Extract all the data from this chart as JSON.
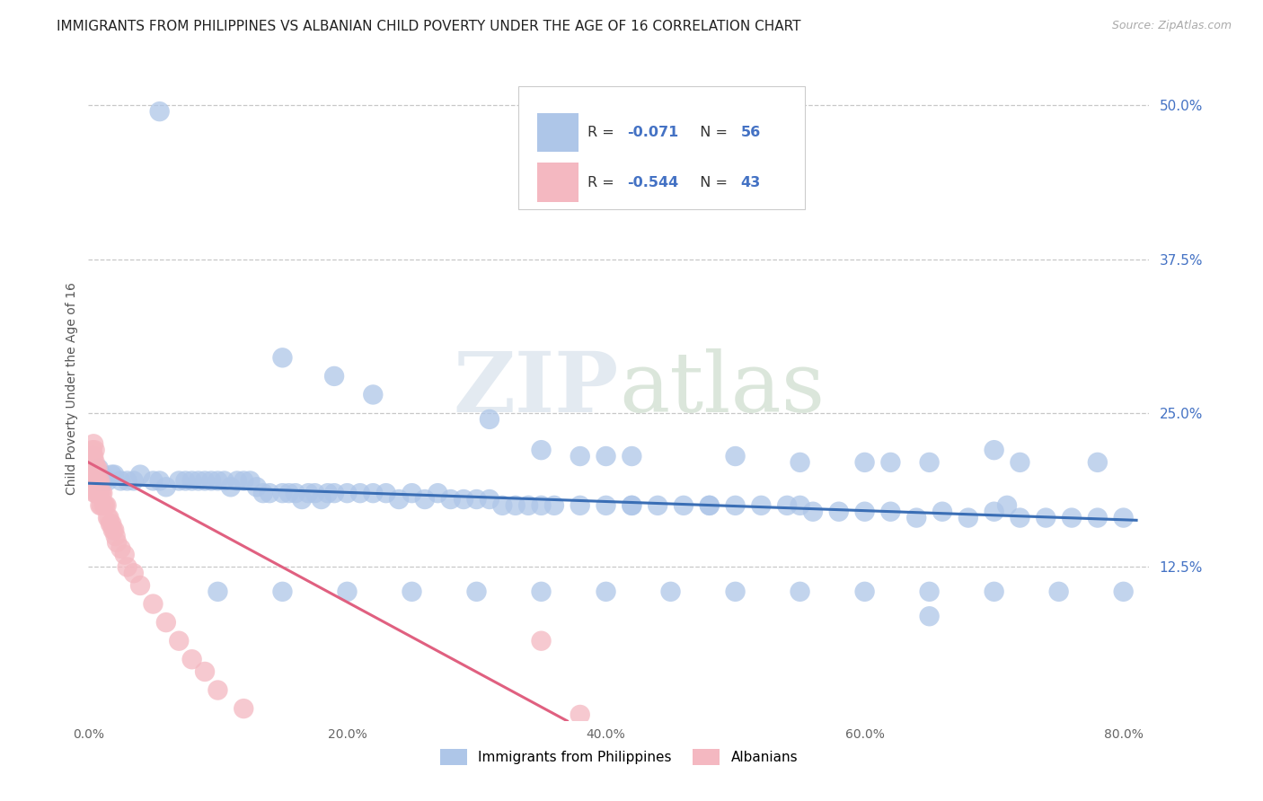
{
  "title": "IMMIGRANTS FROM PHILIPPINES VS ALBANIAN CHILD POVERTY UNDER THE AGE OF 16 CORRELATION CHART",
  "source": "Source: ZipAtlas.com",
  "ylabel": "Child Poverty Under the Age of 16",
  "xlabel_ticks": [
    "0.0%",
    "20.0%",
    "40.0%",
    "60.0%",
    "80.0%"
  ],
  "xlabel_vals": [
    0.0,
    0.2,
    0.4,
    0.6,
    0.8
  ],
  "ylabel_ticks": [
    "50.0%",
    "37.5%",
    "25.0%",
    "12.5%"
  ],
  "ylabel_vals": [
    0.5,
    0.375,
    0.25,
    0.125
  ],
  "xlim": [
    0.0,
    0.82
  ],
  "ylim": [
    0.0,
    0.54
  ],
  "legend1_color": "#aec6e8",
  "legend2_color": "#f4b8c1",
  "line1_color": "#3a6eb5",
  "line2_color": "#e06080",
  "watermark_zip": "ZIP",
  "watermark_atlas": "atlas",
  "scatter_blue": [
    [
      0.055,
      0.495
    ],
    [
      0.008,
      0.205
    ],
    [
      0.008,
      0.195
    ],
    [
      0.01,
      0.2
    ],
    [
      0.01,
      0.195
    ],
    [
      0.012,
      0.195
    ],
    [
      0.015,
      0.195
    ],
    [
      0.018,
      0.2
    ],
    [
      0.02,
      0.2
    ],
    [
      0.025,
      0.195
    ],
    [
      0.03,
      0.195
    ],
    [
      0.035,
      0.195
    ],
    [
      0.04,
      0.2
    ],
    [
      0.05,
      0.195
    ],
    [
      0.055,
      0.195
    ],
    [
      0.06,
      0.19
    ],
    [
      0.07,
      0.195
    ],
    [
      0.075,
      0.195
    ],
    [
      0.08,
      0.195
    ],
    [
      0.085,
      0.195
    ],
    [
      0.09,
      0.195
    ],
    [
      0.095,
      0.195
    ],
    [
      0.1,
      0.195
    ],
    [
      0.105,
      0.195
    ],
    [
      0.11,
      0.19
    ],
    [
      0.115,
      0.195
    ],
    [
      0.12,
      0.195
    ],
    [
      0.125,
      0.195
    ],
    [
      0.13,
      0.19
    ],
    [
      0.135,
      0.185
    ],
    [
      0.14,
      0.185
    ],
    [
      0.15,
      0.185
    ],
    [
      0.155,
      0.185
    ],
    [
      0.16,
      0.185
    ],
    [
      0.165,
      0.18
    ],
    [
      0.17,
      0.185
    ],
    [
      0.175,
      0.185
    ],
    [
      0.18,
      0.18
    ],
    [
      0.185,
      0.185
    ],
    [
      0.19,
      0.185
    ],
    [
      0.2,
      0.185
    ],
    [
      0.21,
      0.185
    ],
    [
      0.22,
      0.185
    ],
    [
      0.23,
      0.185
    ],
    [
      0.24,
      0.18
    ],
    [
      0.25,
      0.185
    ],
    [
      0.26,
      0.18
    ],
    [
      0.27,
      0.185
    ],
    [
      0.28,
      0.18
    ],
    [
      0.29,
      0.18
    ],
    [
      0.3,
      0.18
    ],
    [
      0.31,
      0.18
    ],
    [
      0.32,
      0.175
    ],
    [
      0.33,
      0.175
    ],
    [
      0.34,
      0.175
    ],
    [
      0.35,
      0.175
    ],
    [
      0.36,
      0.175
    ],
    [
      0.38,
      0.175
    ],
    [
      0.4,
      0.175
    ],
    [
      0.42,
      0.175
    ],
    [
      0.44,
      0.175
    ],
    [
      0.46,
      0.175
    ],
    [
      0.48,
      0.175
    ],
    [
      0.5,
      0.175
    ],
    [
      0.52,
      0.175
    ],
    [
      0.54,
      0.175
    ],
    [
      0.56,
      0.17
    ],
    [
      0.58,
      0.17
    ],
    [
      0.6,
      0.17
    ],
    [
      0.62,
      0.17
    ],
    [
      0.64,
      0.165
    ],
    [
      0.66,
      0.17
    ],
    [
      0.68,
      0.165
    ],
    [
      0.7,
      0.17
    ],
    [
      0.72,
      0.165
    ],
    [
      0.74,
      0.165
    ],
    [
      0.76,
      0.165
    ],
    [
      0.78,
      0.165
    ],
    [
      0.8,
      0.165
    ],
    [
      0.15,
      0.295
    ],
    [
      0.19,
      0.28
    ],
    [
      0.22,
      0.265
    ],
    [
      0.31,
      0.245
    ],
    [
      0.35,
      0.22
    ],
    [
      0.38,
      0.215
    ],
    [
      0.4,
      0.215
    ],
    [
      0.42,
      0.215
    ],
    [
      0.5,
      0.215
    ],
    [
      0.55,
      0.21
    ],
    [
      0.6,
      0.21
    ],
    [
      0.65,
      0.21
    ],
    [
      0.72,
      0.21
    ],
    [
      0.78,
      0.21
    ],
    [
      0.42,
      0.175
    ],
    [
      0.48,
      0.175
    ],
    [
      0.55,
      0.175
    ],
    [
      0.62,
      0.21
    ],
    [
      0.7,
      0.22
    ],
    [
      0.71,
      0.175
    ],
    [
      0.1,
      0.105
    ],
    [
      0.15,
      0.105
    ],
    [
      0.2,
      0.105
    ],
    [
      0.25,
      0.105
    ],
    [
      0.3,
      0.105
    ],
    [
      0.35,
      0.105
    ],
    [
      0.4,
      0.105
    ],
    [
      0.45,
      0.105
    ],
    [
      0.5,
      0.105
    ],
    [
      0.55,
      0.105
    ],
    [
      0.6,
      0.105
    ],
    [
      0.65,
      0.105
    ],
    [
      0.7,
      0.105
    ],
    [
      0.75,
      0.105
    ],
    [
      0.8,
      0.105
    ],
    [
      0.65,
      0.085
    ]
  ],
  "scatter_pink": [
    [
      0.003,
      0.215
    ],
    [
      0.003,
      0.205
    ],
    [
      0.004,
      0.215
    ],
    [
      0.004,
      0.205
    ],
    [
      0.004,
      0.195
    ],
    [
      0.005,
      0.21
    ],
    [
      0.005,
      0.2
    ],
    [
      0.005,
      0.19
    ],
    [
      0.005,
      0.185
    ],
    [
      0.006,
      0.205
    ],
    [
      0.006,
      0.195
    ],
    [
      0.006,
      0.185
    ],
    [
      0.007,
      0.205
    ],
    [
      0.007,
      0.195
    ],
    [
      0.007,
      0.185
    ],
    [
      0.008,
      0.195
    ],
    [
      0.008,
      0.185
    ],
    [
      0.009,
      0.195
    ],
    [
      0.009,
      0.185
    ],
    [
      0.009,
      0.175
    ],
    [
      0.01,
      0.185
    ],
    [
      0.01,
      0.175
    ],
    [
      0.011,
      0.185
    ],
    [
      0.012,
      0.175
    ],
    [
      0.013,
      0.175
    ],
    [
      0.014,
      0.175
    ],
    [
      0.015,
      0.165
    ],
    [
      0.016,
      0.165
    ],
    [
      0.017,
      0.16
    ],
    [
      0.018,
      0.16
    ],
    [
      0.019,
      0.155
    ],
    [
      0.02,
      0.155
    ],
    [
      0.021,
      0.15
    ],
    [
      0.022,
      0.145
    ],
    [
      0.025,
      0.14
    ],
    [
      0.028,
      0.135
    ],
    [
      0.03,
      0.125
    ],
    [
      0.035,
      0.12
    ],
    [
      0.04,
      0.11
    ],
    [
      0.05,
      0.095
    ],
    [
      0.06,
      0.08
    ],
    [
      0.07,
      0.065
    ],
    [
      0.08,
      0.05
    ],
    [
      0.09,
      0.04
    ],
    [
      0.1,
      0.025
    ],
    [
      0.12,
      0.01
    ],
    [
      0.005,
      0.22
    ],
    [
      0.003,
      0.22
    ],
    [
      0.004,
      0.225
    ],
    [
      0.35,
      0.065
    ],
    [
      0.38,
      0.005
    ]
  ],
  "background_color": "#ffffff",
  "grid_color": "#c8c8c8",
  "title_fontsize": 11,
  "axis_label_fontsize": 10,
  "tick_fontsize": 10,
  "line1_x_start": 0.0,
  "line1_x_end": 0.81,
  "line1_y_start": 0.193,
  "line1_y_end": 0.163,
  "line2_x_start": 0.0,
  "line2_x_end": 0.37,
  "line2_y_start": 0.21,
  "line2_y_end": 0.0
}
